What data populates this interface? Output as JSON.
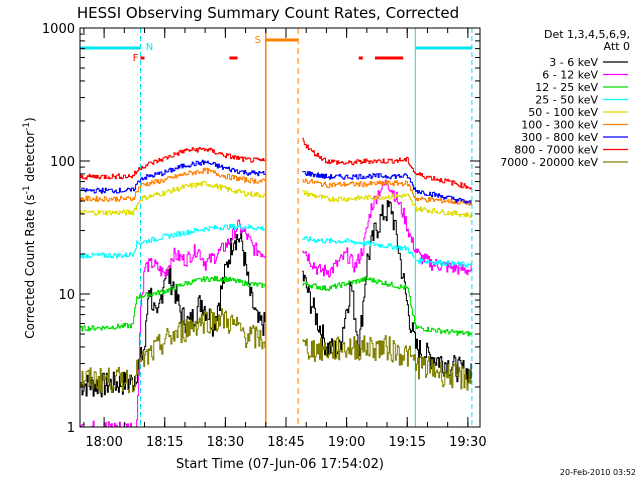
{
  "chart_data": {
    "type": "line",
    "title": "HESSI Observing Summary Count Rates, Corrected",
    "xlabel": "Start Time (07-Jun-06 17:54:02)",
    "ylabel": "Corrected Count Rate (s",
    "ylabel_sup1": "-1",
    "ylabel_mid": " detector",
    "ylabel_sup2": "-1",
    "ylabel_end": ")",
    "y_scale": "log",
    "ylim": [
      1,
      1000
    ],
    "xlim": [
      "17:54:02",
      "19:33:00"
    ],
    "x_ticks": [
      "18:00",
      "18:15",
      "18:30",
      "18:45",
      "19:00",
      "19:15",
      "19:30"
    ],
    "y_ticks": [
      "1",
      "10",
      "100",
      "1000"
    ],
    "legend_header": [
      "Det 1,3,4,5,6,9,",
      "Att 0"
    ],
    "legend_position": "right",
    "footer_date": "20-Feb-2010 03:52",
    "flags": {
      "night_label": "N",
      "flare_label": "F",
      "saa_label": "S",
      "night_intervals": [
        [
          "17:54",
          "18:09"
        ],
        [
          "19:17",
          "19:31"
        ]
      ],
      "flare_intervals": [
        [
          "18:09",
          "18:10"
        ],
        [
          "18:31",
          "18:33"
        ],
        [
          "19:03",
          "19:04"
        ],
        [
          "19:07",
          "19:14"
        ]
      ],
      "saa_interval": [
        "18:40",
        "18:48"
      ],
      "flare_color": "#ff0000",
      "night_color": "#00e5ee",
      "saa_color": "#ff8000"
    },
    "data_gap": [
      "18:40",
      "18:49"
    ],
    "series": [
      {
        "name": "3 - 6 keV",
        "color": "#000000",
        "points": [
          [
            "17:54",
            2.1
          ],
          [
            "18:00",
            2.1
          ],
          [
            "18:07",
            2.2
          ],
          [
            "18:10",
            4
          ],
          [
            "18:11",
            12
          ],
          [
            "18:13",
            6
          ],
          [
            "18:15",
            15
          ],
          [
            "18:17",
            12
          ],
          [
            "18:19",
            7
          ],
          [
            "18:21",
            6
          ],
          [
            "18:24",
            9
          ],
          [
            "18:27",
            6
          ],
          [
            "18:30",
            15
          ],
          [
            "18:32",
            28
          ],
          [
            "18:34",
            25
          ],
          [
            "18:36",
            10
          ],
          [
            "18:38",
            6
          ],
          [
            "18:40",
            6
          ],
          [
            "18:49",
            14
          ],
          [
            "18:51",
            9
          ],
          [
            "18:53",
            6
          ],
          [
            "18:55",
            4
          ],
          [
            "18:58",
            3.8
          ],
          [
            "19:01",
            12
          ],
          [
            "19:03",
            4
          ],
          [
            "19:05",
            18
          ],
          [
            "19:07",
            30
          ],
          [
            "19:09",
            40
          ],
          [
            "19:11",
            45
          ],
          [
            "19:13",
            20
          ],
          [
            "19:15",
            8
          ],
          [
            "19:17",
            4
          ],
          [
            "19:20",
            3.5
          ],
          [
            "19:25",
            3
          ],
          [
            "19:31",
            2.5
          ]
        ]
      },
      {
        "name": "6 - 12 keV",
        "color": "#ff00ff",
        "points": [
          [
            "17:54",
            1.0
          ],
          [
            "18:08",
            1.0
          ],
          [
            "18:09",
            8
          ],
          [
            "18:10",
            16
          ],
          [
            "18:12",
            17
          ],
          [
            "18:15",
            14
          ],
          [
            "18:17",
            20
          ],
          [
            "18:20",
            18
          ],
          [
            "18:23",
            22
          ],
          [
            "18:25",
            17
          ],
          [
            "18:28",
            20
          ],
          [
            "18:31",
            25
          ],
          [
            "18:33",
            33
          ],
          [
            "18:35",
            28
          ],
          [
            "18:37",
            22
          ],
          [
            "18:40",
            20
          ],
          [
            "18:49",
            23
          ],
          [
            "18:51",
            18
          ],
          [
            "18:53",
            15
          ],
          [
            "18:56",
            15
          ],
          [
            "19:00",
            20
          ],
          [
            "19:02",
            16
          ],
          [
            "19:04",
            22
          ],
          [
            "19:06",
            45
          ],
          [
            "19:08",
            60
          ],
          [
            "19:10",
            70
          ],
          [
            "19:12",
            55
          ],
          [
            "19:14",
            40
          ],
          [
            "19:16",
            25
          ],
          [
            "19:18",
            19
          ],
          [
            "19:21",
            17
          ],
          [
            "19:25",
            16
          ],
          [
            "19:31",
            15
          ]
        ]
      },
      {
        "name": "12 - 25 keV",
        "color": "#00dd00",
        "points": [
          [
            "17:54",
            5.5
          ],
          [
            "18:00",
            5.6
          ],
          [
            "18:07",
            5.8
          ],
          [
            "18:08",
            9.5
          ],
          [
            "18:15",
            10.5
          ],
          [
            "18:20",
            12
          ],
          [
            "18:25",
            13
          ],
          [
            "18:30",
            13
          ],
          [
            "18:35",
            12
          ],
          [
            "18:40",
            11.5
          ],
          [
            "18:49",
            12
          ],
          [
            "18:55",
            11
          ],
          [
            "19:00",
            12
          ],
          [
            "19:05",
            13
          ],
          [
            "19:10",
            12
          ],
          [
            "19:15",
            11
          ],
          [
            "19:17",
            5.6
          ],
          [
            "19:25",
            5.2
          ],
          [
            "19:31",
            5.0
          ]
        ]
      },
      {
        "name": "25 - 50 keV",
        "color": "#00ffff",
        "points": [
          [
            "17:54",
            19.5
          ],
          [
            "18:05",
            19.5
          ],
          [
            "18:07",
            20
          ],
          [
            "18:08",
            24
          ],
          [
            "18:15",
            27
          ],
          [
            "18:20",
            29
          ],
          [
            "18:25",
            31
          ],
          [
            "18:30",
            32
          ],
          [
            "18:35",
            32
          ],
          [
            "18:40",
            31
          ],
          [
            "18:49",
            26
          ],
          [
            "18:55",
            25
          ],
          [
            "19:00",
            25
          ],
          [
            "19:05",
            24
          ],
          [
            "19:10",
            23
          ],
          [
            "19:15",
            22
          ],
          [
            "19:17",
            18
          ],
          [
            "19:25",
            17
          ],
          [
            "19:31",
            16.5
          ]
        ]
      },
      {
        "name": "50 - 100 keV",
        "color": "#dddd00",
        "points": [
          [
            "17:54",
            41
          ],
          [
            "18:07",
            41
          ],
          [
            "18:09",
            52
          ],
          [
            "18:15",
            58
          ],
          [
            "18:20",
            64
          ],
          [
            "18:25",
            68
          ],
          [
            "18:30",
            62
          ],
          [
            "18:35",
            57
          ],
          [
            "18:40",
            55
          ],
          [
            "18:49",
            58
          ],
          [
            "18:55",
            52
          ],
          [
            "19:00",
            52
          ],
          [
            "19:05",
            53
          ],
          [
            "19:10",
            54
          ],
          [
            "19:15",
            55
          ],
          [
            "19:17",
            44
          ],
          [
            "19:25",
            41
          ],
          [
            "19:31",
            39
          ]
        ]
      },
      {
        "name": "100 - 300 keV",
        "color": "#ff8000",
        "points": [
          [
            "17:54",
            52
          ],
          [
            "18:07",
            52
          ],
          [
            "18:09",
            66
          ],
          [
            "18:15",
            72
          ],
          [
            "18:20",
            80
          ],
          [
            "18:25",
            85
          ],
          [
            "18:30",
            77
          ],
          [
            "18:35",
            72
          ],
          [
            "18:40",
            70
          ],
          [
            "18:49",
            72
          ],
          [
            "18:55",
            66
          ],
          [
            "19:00",
            67
          ],
          [
            "19:05",
            67
          ],
          [
            "19:10",
            68
          ],
          [
            "19:15",
            68
          ],
          [
            "19:17",
            52
          ],
          [
            "19:25",
            50
          ],
          [
            "19:31",
            48
          ]
        ]
      },
      {
        "name": "300 - 800 keV",
        "color": "#0000ff",
        "points": [
          [
            "17:54",
            60
          ],
          [
            "18:07",
            60
          ],
          [
            "18:09",
            74
          ],
          [
            "18:15",
            82
          ],
          [
            "18:20",
            93
          ],
          [
            "18:25",
            98
          ],
          [
            "18:30",
            88
          ],
          [
            "18:35",
            82
          ],
          [
            "18:40",
            80
          ],
          [
            "18:49",
            82
          ],
          [
            "18:55",
            76
          ],
          [
            "19:00",
            76
          ],
          [
            "19:05",
            77
          ],
          [
            "19:10",
            77
          ],
          [
            "19:15",
            77
          ],
          [
            "19:17",
            60
          ],
          [
            "19:25",
            53
          ],
          [
            "19:31",
            48
          ]
        ]
      },
      {
        "name": "800 - 7000 keV",
        "color": "#ff0000",
        "points": [
          [
            "17:54",
            76
          ],
          [
            "18:07",
            77
          ],
          [
            "18:09",
            90
          ],
          [
            "18:15",
            105
          ],
          [
            "18:20",
            120
          ],
          [
            "18:25",
            123
          ],
          [
            "18:30",
            110
          ],
          [
            "18:35",
            102
          ],
          [
            "18:40",
            100
          ],
          [
            "18:49",
            145
          ],
          [
            "18:51",
            120
          ],
          [
            "18:55",
            100
          ],
          [
            "19:00",
            96
          ],
          [
            "19:05",
            100
          ],
          [
            "19:10",
            100
          ],
          [
            "19:15",
            102
          ],
          [
            "19:17",
            80
          ],
          [
            "19:25",
            70
          ],
          [
            "19:31",
            63
          ]
        ]
      },
      {
        "name": "7000 - 20000 keV",
        "color": "#808000",
        "points": [
          [
            "17:54",
            2.3
          ],
          [
            "18:07",
            2.3
          ],
          [
            "18:09",
            3.0
          ],
          [
            "18:15",
            4.5
          ],
          [
            "18:20",
            5.5
          ],
          [
            "18:25",
            6.5
          ],
          [
            "18:30",
            6.5
          ],
          [
            "18:35",
            5.0
          ],
          [
            "18:40",
            4.5
          ],
          [
            "18:49",
            4.0
          ],
          [
            "18:55",
            3.8
          ],
          [
            "19:00",
            4.0
          ],
          [
            "19:05",
            4.0
          ],
          [
            "19:10",
            4.0
          ],
          [
            "19:15",
            3.5
          ],
          [
            "19:17",
            3.0
          ],
          [
            "19:25",
            2.5
          ],
          [
            "19:31",
            2.3
          ]
        ]
      }
    ]
  }
}
